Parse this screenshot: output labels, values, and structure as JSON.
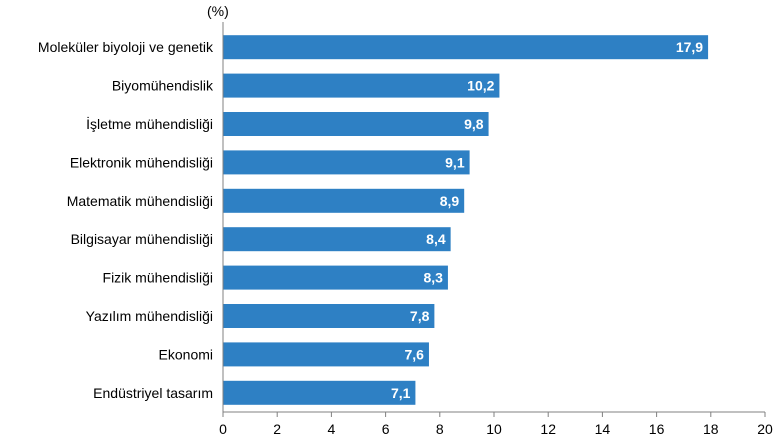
{
  "chart_data": {
    "type": "bar",
    "orientation": "horizontal",
    "unit_label": "(%)",
    "categories": [
      "Moleküler biyoloji ve genetik",
      "Biyomühendislik",
      "İşletme mühendisliği",
      "Elektronik mühendisliği",
      "Matematik mühendisliği",
      "Bilgisayar mühendisliği",
      "Fizik mühendisliği",
      "Yazılım mühendisliği",
      "Ekonomi",
      "Endüstriyel tasarım"
    ],
    "values": [
      17.9,
      10.2,
      9.8,
      9.1,
      8.9,
      8.4,
      8.3,
      7.8,
      7.6,
      7.1
    ],
    "value_labels": [
      "17,9",
      "10,2",
      "9,8",
      "9,1",
      "8,9",
      "8,4",
      "8,3",
      "7,8",
      "7,6",
      "7,1"
    ],
    "xlim": [
      0,
      20
    ],
    "xticks": [
      0,
      2,
      4,
      6,
      8,
      10,
      12,
      14,
      16,
      18,
      20
    ],
    "grid": false,
    "bar_color": "#2e80c4",
    "axis_color": "#808080"
  }
}
